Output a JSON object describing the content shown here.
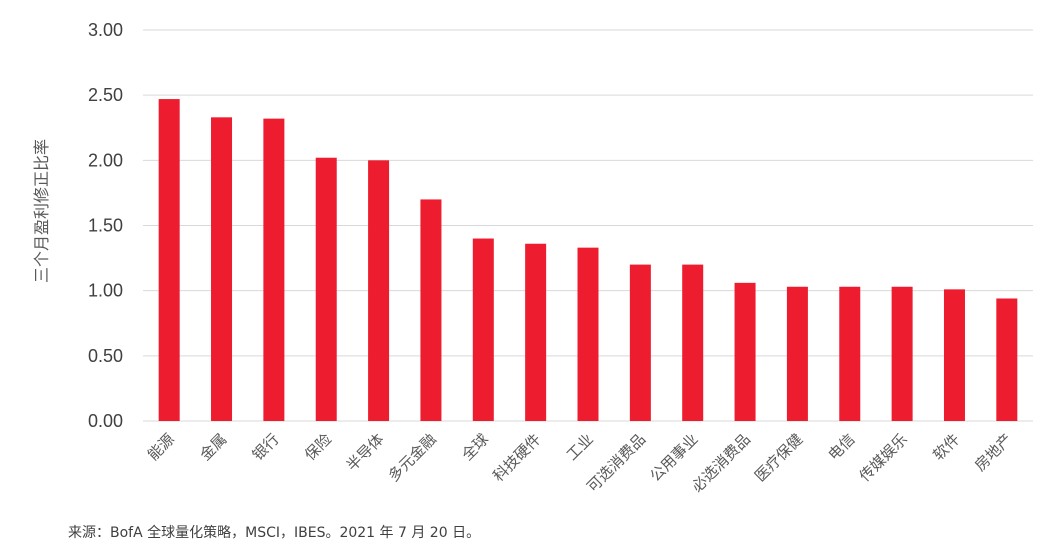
{
  "chart_data": {
    "type": "bar",
    "ylabel": "三个月盈利修正比率",
    "xlabel": "",
    "ylim": [
      0,
      3
    ],
    "yticks": [
      "0.00",
      "0.50",
      "1.00",
      "1.50",
      "2.00",
      "2.50",
      "3.00"
    ],
    "grid": true,
    "categories": [
      "能源",
      "金属",
      "银行",
      "保险",
      "半导体",
      "多元金融",
      "全球",
      "科技硬件",
      "工业",
      "可选消费品",
      "公用事业",
      "必选消费品",
      "医疗保健",
      "电信",
      "传媒娱乐",
      "软件",
      "房地产"
    ],
    "values": [
      2.47,
      2.33,
      2.32,
      2.02,
      2.0,
      1.7,
      1.4,
      1.36,
      1.33,
      1.2,
      1.2,
      1.06,
      1.03,
      1.03,
      1.03,
      1.01,
      0.94
    ],
    "bar_color": "#ED1C2E",
    "grid_color": "#D9D9D9"
  },
  "source": "来源：BofA 全球量化策略，MSCI，IBES。2021 年 7 月 20 日。"
}
